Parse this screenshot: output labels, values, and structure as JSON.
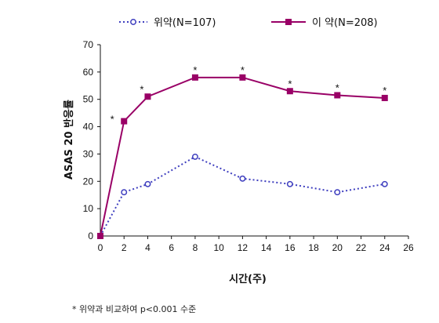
{
  "chart_data": {
    "type": "line",
    "xlabel": "시간(주)",
    "ylabel": "ASAS 20 반응률",
    "xlim": [
      0,
      26
    ],
    "ylim": [
      0,
      70
    ],
    "xticks": [
      "0",
      "2",
      "4",
      "6",
      "8",
      "10",
      "12",
      "14",
      "16",
      "18",
      "20",
      "22",
      "24",
      "26"
    ],
    "yticks": [
      "0",
      "10",
      "20",
      "30",
      "40",
      "50",
      "60",
      "70"
    ],
    "grid": false,
    "legend_position": "top",
    "series": [
      {
        "name": "위약(N=107)",
        "color": "#3f3fbf",
        "style": "dotted",
        "marker": "open-circle",
        "x": [
          0,
          2,
          4,
          8,
          12,
          16,
          20,
          24
        ],
        "y": [
          0,
          16,
          19,
          29,
          21,
          19,
          16,
          19
        ]
      },
      {
        "name": "이 약(N=208)",
        "color": "#990066",
        "style": "solid",
        "marker": "filled-square",
        "x": [
          0,
          2,
          4,
          8,
          12,
          16,
          20,
          24
        ],
        "y": [
          0,
          42,
          51,
          58,
          58,
          53,
          51.5,
          50.5
        ]
      }
    ],
    "annotations": [
      {
        "text": "*",
        "x": 1,
        "y": 42
      },
      {
        "text": "*",
        "x": 3.5,
        "y": 53
      },
      {
        "text": "*",
        "x": 8,
        "y": 60
      },
      {
        "text": "*",
        "x": 12,
        "y": 60
      },
      {
        "text": "*",
        "x": 16,
        "y": 55
      },
      {
        "text": "*",
        "x": 20,
        "y": 53.5
      },
      {
        "text": "*",
        "x": 24,
        "y": 52.5
      }
    ]
  },
  "footnote": "* 위약과 비교하여 p<0.001 수준"
}
